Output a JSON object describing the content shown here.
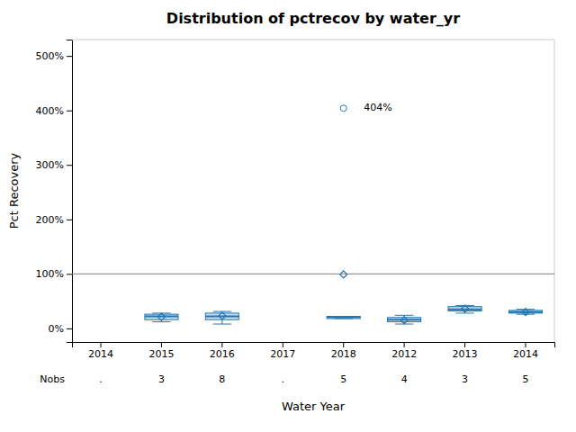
{
  "chart_data": {
    "type": "box",
    "title": "Distribution of pctrecov by water_yr",
    "xlabel": "Water Year",
    "ylabel": "Pct Recovery",
    "categories": [
      "2014",
      "2015",
      "2016",
      "2017",
      "2018",
      "2012",
      "2013",
      "2014"
    ],
    "boxes": [
      {
        "q1": null,
        "median": null,
        "q3": null,
        "whislo": null,
        "whishi": null,
        "mean": null,
        "fliers": [],
        "flier_labels": []
      },
      {
        "q1": 16,
        "median": 22,
        "q3": 26,
        "whislo": 12,
        "whishi": 28,
        "mean": 21,
        "fliers": [],
        "flier_labels": []
      },
      {
        "q1": 16,
        "median": 22,
        "q3": 28,
        "whislo": 8,
        "whishi": 31,
        "mean": 23,
        "fliers": [],
        "flier_labels": []
      },
      {
        "q1": null,
        "median": null,
        "q3": null,
        "whislo": null,
        "whishi": null,
        "mean": null,
        "fliers": [],
        "flier_labels": []
      },
      {
        "q1": 18,
        "median": 21,
        "q3": 22,
        "whislo": 18,
        "whishi": 22,
        "mean": 99,
        "fliers": [
          404
        ],
        "flier_labels": [
          "404%"
        ]
      },
      {
        "q1": 12,
        "median": 16,
        "q3": 20,
        "whislo": 8,
        "whishi": 24,
        "mean": 15,
        "fliers": [],
        "flier_labels": []
      },
      {
        "q1": 32,
        "median": 35,
        "q3": 40,
        "whislo": 28,
        "whishi": 42,
        "mean": 36,
        "fliers": [],
        "flier_labels": []
      },
      {
        "q1": 28,
        "median": 30,
        "q3": 33,
        "whislo": 26,
        "whishi": 35,
        "mean": 30,
        "fliers": [],
        "flier_labels": []
      }
    ],
    "nobs_label": "Nobs",
    "nobs": [
      ".",
      "3",
      "8",
      ".",
      "5",
      "4",
      "3",
      "5"
    ],
    "reference_line": 100,
    "ylim": [
      -25,
      530
    ],
    "yticks": [
      {
        "value": 0,
        "label": "0%"
      },
      {
        "value": 100,
        "label": "100%"
      },
      {
        "value": 200,
        "label": "200%"
      },
      {
        "value": 300,
        "label": "300%"
      },
      {
        "value": 400,
        "label": "400%"
      },
      {
        "value": 500,
        "label": "500%"
      }
    ],
    "grid": false
  }
}
